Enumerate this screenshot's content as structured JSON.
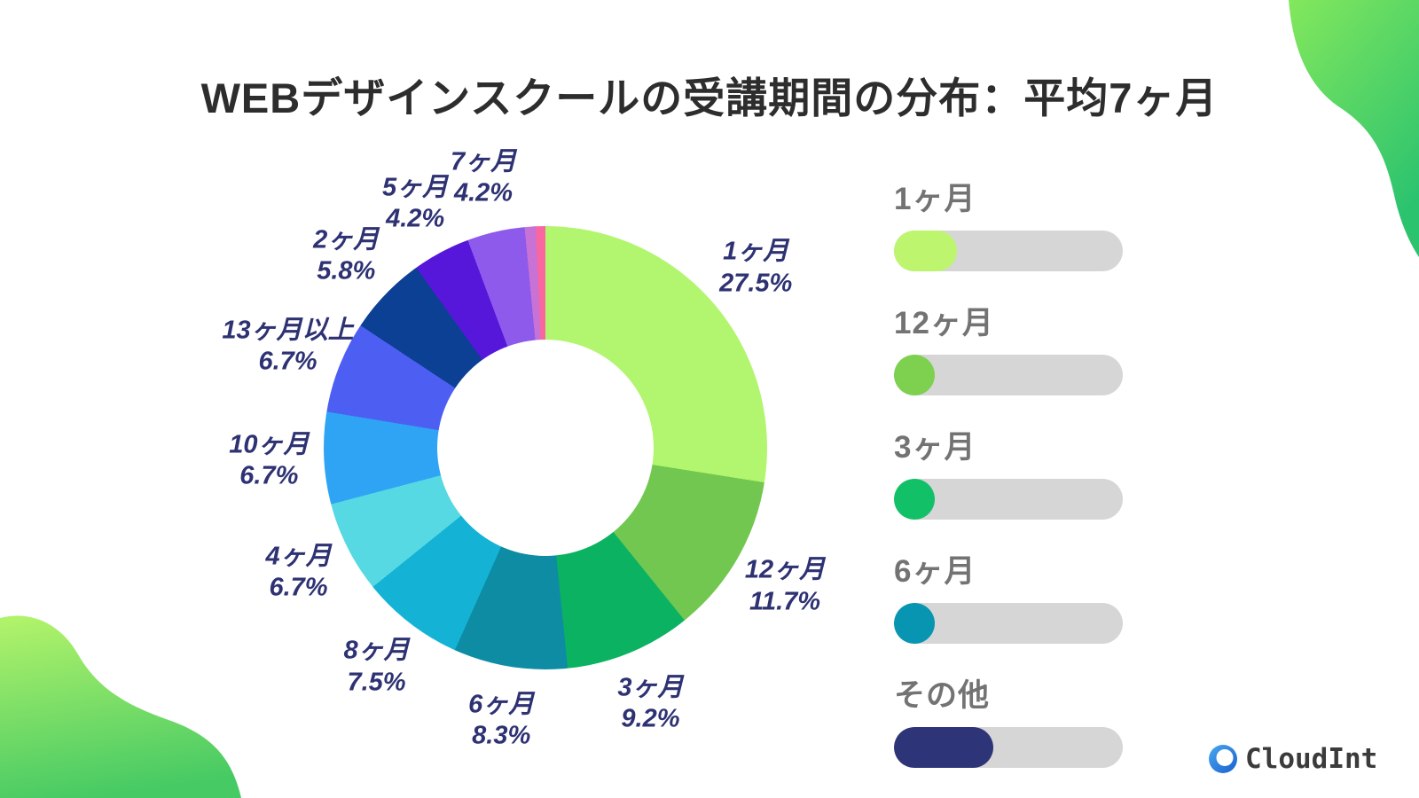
{
  "title": "WEBデザインスクールの受講期間の分布：平均7ヶ月",
  "chart_data": {
    "type": "pie",
    "title": "WEBデザインスクールの受講期間の分布：平均7ヶ月",
    "donut": true,
    "start_angle_deg": 0,
    "direction": "clockwise",
    "slices": [
      {
        "label": "1ヶ月",
        "value": 27.5,
        "color": "#b2f56e"
      },
      {
        "label": "12ヶ月",
        "value": 11.7,
        "color": "#72c750"
      },
      {
        "label": "3ヶ月",
        "value": 9.2,
        "color": "#0bb261"
      },
      {
        "label": "6ヶ月",
        "value": 8.3,
        "color": "#0d8ca4"
      },
      {
        "label": "8ヶ月",
        "value": 7.5,
        "color": "#14b3d6"
      },
      {
        "label": "4ヶ月",
        "value": 6.7,
        "color": "#56d9e2"
      },
      {
        "label": "10ヶ月",
        "value": 6.7,
        "color": "#2fa4f4"
      },
      {
        "label": "13ヶ月以上",
        "value": 6.7,
        "color": "#4d5ef2"
      },
      {
        "label": "2ヶ月",
        "value": 5.8,
        "color": "#0b4094"
      },
      {
        "label": "5ヶ月",
        "value": 4.2,
        "color": "#5617da"
      },
      {
        "label": "7ヶ月",
        "value": 4.2,
        "color": "#8d5aec"
      },
      {
        "label": "",
        "value": 0.8,
        "color": "#c772d4"
      },
      {
        "label": "",
        "value": 0.7,
        "color": "#f966a0"
      }
    ],
    "label_color": "#2e3273",
    "percent_suffix": "%"
  },
  "legend": {
    "track_color": "#d6d6d6",
    "items": [
      {
        "label": "1ヶ月",
        "value": 27.5,
        "color": "#bdf56f"
      },
      {
        "label": "12ヶ月",
        "value": 11.7,
        "color": "#7ed04f"
      },
      {
        "label": "3ヶ月",
        "value": 9.2,
        "color": "#12c068"
      },
      {
        "label": "6ヶ月",
        "value": 8.3,
        "color": "#0795b2"
      },
      {
        "label": "その他",
        "value": 43.3,
        "color": "#2e3478"
      }
    ]
  },
  "logo": {
    "text": "CloudInt",
    "icon": "cloud-ring-icon",
    "icon_gradient_from": "#4aa8ef",
    "icon_gradient_to": "#1a5fd0"
  },
  "decor": {
    "blob_top_right_from": "#83e85c",
    "blob_top_right_to": "#2cc36f",
    "blob_bottom_left_from": "#b0f26a",
    "blob_bottom_left_to": "#46ca64"
  }
}
